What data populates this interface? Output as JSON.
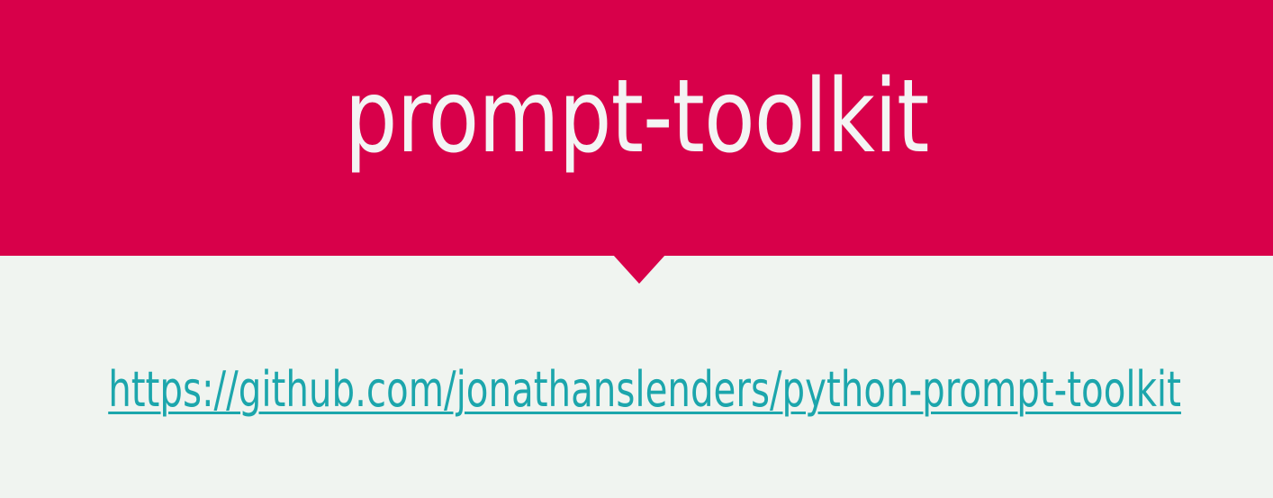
{
  "slide": {
    "title": "prompt-toolkit",
    "link_text": "https://github.com/jonathanslenders/python-prompt-toolkit"
  },
  "colors": {
    "header_background": "#d8004a",
    "title_text": "#f4f4f4",
    "page_background": "#f0f4f0",
    "link": "#1ca6ac"
  }
}
